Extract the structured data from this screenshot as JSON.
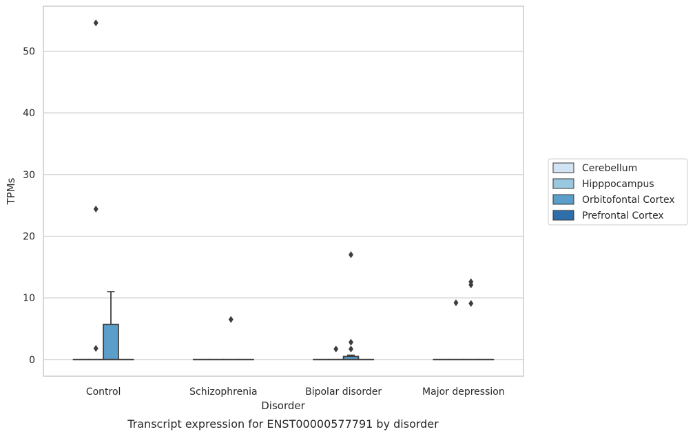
{
  "chart_data": {
    "type": "box",
    "title": "",
    "caption": "Transcript expression for ENST00000577791 by disorder",
    "xlabel": "Disorder",
    "ylabel": "TPMs",
    "ylim": [
      -2.7,
      57.3
    ],
    "yticks": [
      0,
      10,
      20,
      30,
      40,
      50
    ],
    "grid": "horizontal",
    "legend_placement": "right",
    "categories": [
      "Control",
      "Schizophrenia",
      "Bipolar disorder",
      "Major depression"
    ],
    "series": [
      {
        "name": "Cerebellum",
        "color": "#d2e3f3",
        "boxes": [
          {
            "q1": 0,
            "median": 0,
            "q3": 0,
            "whisker_low": 0,
            "whisker_high": 0,
            "outliers": []
          },
          {
            "q1": 0,
            "median": 0,
            "q3": 0,
            "whisker_low": 0,
            "whisker_high": 0,
            "outliers": []
          },
          {
            "q1": 0,
            "median": 0,
            "q3": 0,
            "whisker_low": 0,
            "whisker_high": 0,
            "outliers": []
          },
          {
            "q1": 0,
            "median": 0,
            "q3": 0,
            "whisker_low": 0,
            "whisker_high": 0,
            "outliers": []
          }
        ]
      },
      {
        "name": "Hipppocampus",
        "color": "#9ac8e0",
        "boxes": [
          {
            "q1": 0,
            "median": 0,
            "q3": 0,
            "whisker_low": 0,
            "whisker_high": 0,
            "outliers": [
              54.6,
              24.4,
              1.8
            ]
          },
          {
            "q1": 0,
            "median": 0,
            "q3": 0,
            "whisker_low": 0,
            "whisker_high": 0,
            "outliers": []
          },
          {
            "q1": 0,
            "median": 0,
            "q3": 0,
            "whisker_low": 0,
            "whisker_high": 0,
            "outliers": [
              1.7
            ]
          },
          {
            "q1": 0,
            "median": 0,
            "q3": 0,
            "whisker_low": 0,
            "whisker_high": 0,
            "outliers": [
              9.2
            ]
          }
        ]
      },
      {
        "name": "Orbitofontal Cortex",
        "color": "#5a9ec9",
        "boxes": [
          {
            "q1": 0,
            "median": 0,
            "q3": 5.7,
            "whisker_low": 0,
            "whisker_high": 11.0,
            "outliers": []
          },
          {
            "q1": 0,
            "median": 0,
            "q3": 0,
            "whisker_low": 0,
            "whisker_high": 0,
            "outliers": [
              6.5
            ]
          },
          {
            "q1": 0,
            "median": 0,
            "q3": 0.5,
            "whisker_low": 0,
            "whisker_high": 0.7,
            "outliers": [
              17.0,
              2.8,
              1.7
            ]
          },
          {
            "q1": 0,
            "median": 0,
            "q3": 0,
            "whisker_low": 0,
            "whisker_high": 0,
            "outliers": [
              12.6,
              12.1,
              9.1
            ]
          }
        ]
      },
      {
        "name": "Prefrontal Cortex",
        "color": "#2d6eab",
        "boxes": [
          {
            "q1": 0,
            "median": 0,
            "q3": 0,
            "whisker_low": 0,
            "whisker_high": 0,
            "outliers": []
          },
          {
            "q1": 0,
            "median": 0,
            "q3": 0,
            "whisker_low": 0,
            "whisker_high": 0,
            "outliers": []
          },
          {
            "q1": 0,
            "median": 0,
            "q3": 0,
            "whisker_low": 0,
            "whisker_high": 0,
            "outliers": []
          },
          {
            "q1": 0,
            "median": 0,
            "q3": 0,
            "whisker_low": 0,
            "whisker_high": 0,
            "outliers": []
          }
        ]
      }
    ]
  }
}
